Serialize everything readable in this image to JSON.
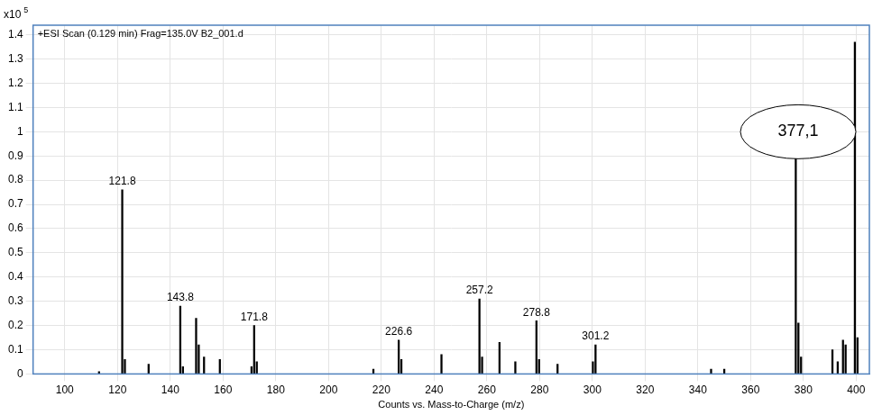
{
  "chart_data": {
    "type": "bar",
    "title": "+ESI Scan (0.129 min) Frag=135.0V B2_001.d",
    "y_label": "x10",
    "y_label_exponent": "5",
    "x_label": "Counts vs. Mass-to-Charge (m/z)",
    "color": "#000000",
    "grid": true,
    "x": [
      113.0,
      121.8,
      122.8,
      131.8,
      143.8,
      144.8,
      149.8,
      150.8,
      152.8,
      158.8,
      170.8,
      171.8,
      172.8,
      217.0,
      226.6,
      227.6,
      242.8,
      257.2,
      258.2,
      264.8,
      270.8,
      278.8,
      279.8,
      286.8,
      300.2,
      301.2,
      345.0,
      350.0,
      377.1,
      378.1,
      379.1,
      391.0,
      393.0,
      395.0,
      396.0,
      399.5,
      400.5
    ],
    "values": [
      0.01,
      0.76,
      0.06,
      0.04,
      0.28,
      0.03,
      0.23,
      0.12,
      0.07,
      0.06,
      0.03,
      0.2,
      0.05,
      0.02,
      0.14,
      0.06,
      0.08,
      0.31,
      0.07,
      0.13,
      0.05,
      0.22,
      0.06,
      0.04,
      0.05,
      0.12,
      0.02,
      0.02,
      1.0,
      0.21,
      0.07,
      0.1,
      0.05,
      0.14,
      0.12,
      1.37,
      0.15
    ],
    "xlim": [
      88,
      405
    ],
    "xticks": [
      100,
      120,
      140,
      160,
      180,
      200,
      220,
      240,
      260,
      280,
      300,
      320,
      340,
      360,
      380,
      400
    ],
    "ylim": [
      0,
      1.44
    ],
    "yticks": [
      0,
      0.1,
      0.2,
      0.3,
      0.4,
      0.5,
      0.6,
      0.7,
      0.8,
      0.9,
      1,
      1.1,
      1.2,
      1.3,
      1.4
    ],
    "annotations": [
      {
        "text": "121.8",
        "x": 121.8,
        "y": 0.76
      },
      {
        "text": "143.8",
        "x": 143.8,
        "y": 0.28
      },
      {
        "text": "171.8",
        "x": 171.8,
        "y": 0.2
      },
      {
        "text": "226.6",
        "x": 226.6,
        "y": 0.14
      },
      {
        "text": "257.2",
        "x": 257.2,
        "y": 0.31
      },
      {
        "text": "278.8",
        "x": 278.8,
        "y": 0.22
      },
      {
        "text": "301.2",
        "x": 301.2,
        "y": 0.12
      }
    ],
    "callout": {
      "text": "377,1",
      "x": 378,
      "y": 1.0
    }
  }
}
